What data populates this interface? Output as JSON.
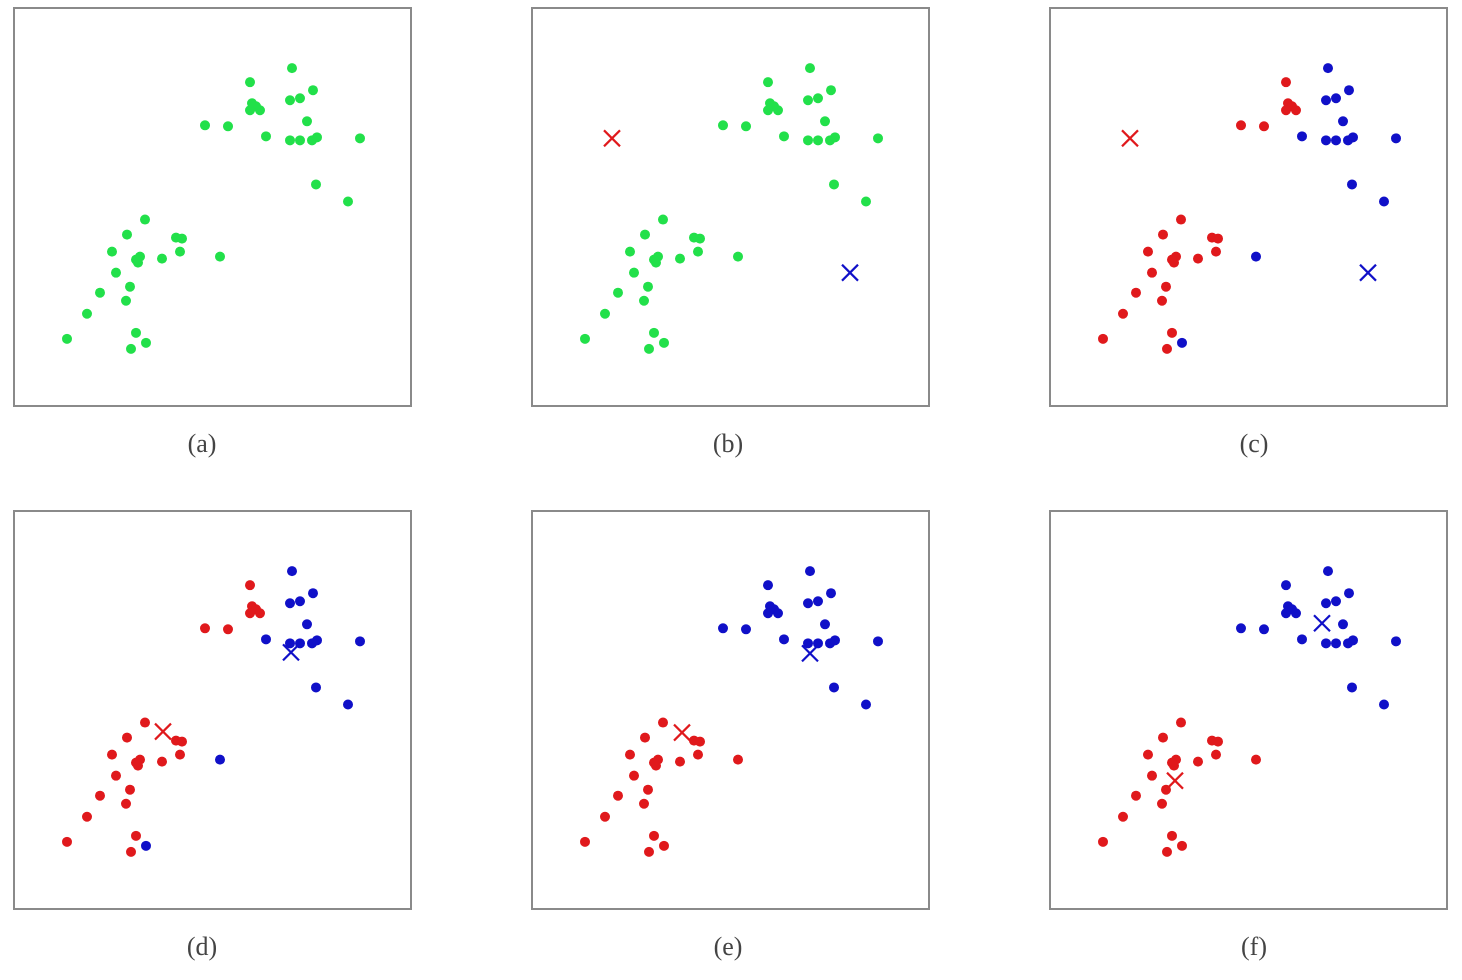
{
  "chart_data": [
    {
      "type": "scatter",
      "title": "(a)",
      "xlim": [
        0,
        397
      ],
      "ylim": [
        0,
        397
      ],
      "series": [
        {
          "color": "#22e04a",
          "marker": "dot",
          "x": [
            236,
            278,
            238,
            242,
            246,
            236,
            276,
            286,
            299,
            191,
            214,
            252,
            293,
            276,
            286,
            298,
            303,
            346,
            302,
            334,
            131,
            113,
            98,
            126,
            124,
            122,
            148,
            162,
            168,
            166,
            206,
            102,
            116,
            86,
            112,
            73,
            53,
            122,
            117,
            132
          ],
          "values": [
            323,
            337,
            302,
            299,
            295,
            295,
            305,
            307,
            315,
            280,
            279,
            269,
            284,
            265,
            265,
            265,
            268,
            267,
            221,
            204,
            186,
            171,
            154,
            149,
            143,
            146,
            147,
            168,
            167,
            154,
            149,
            133,
            119,
            113,
            105,
            92,
            67,
            73,
            57,
            63
          ]
        }
      ]
    },
    {
      "type": "scatter",
      "title": "(b)",
      "xlim": [
        0,
        397
      ],
      "ylim": [
        0,
        397
      ],
      "series": [
        {
          "color": "#22e04a",
          "marker": "dot",
          "x": [
            236,
            278,
            238,
            242,
            246,
            236,
            276,
            286,
            299,
            191,
            214,
            252,
            293,
            276,
            286,
            298,
            303,
            346,
            302,
            334,
            131,
            113,
            98,
            126,
            124,
            122,
            148,
            162,
            168,
            166,
            206,
            102,
            116,
            86,
            112,
            73,
            53,
            122,
            117,
            132
          ],
          "values": [
            323,
            337,
            302,
            299,
            295,
            295,
            305,
            307,
            315,
            280,
            279,
            269,
            284,
            265,
            265,
            265,
            268,
            267,
            221,
            204,
            186,
            171,
            154,
            149,
            143,
            146,
            147,
            168,
            167,
            154,
            149,
            133,
            119,
            113,
            105,
            92,
            67,
            73,
            57,
            63
          ]
        },
        {
          "color": "#e0191c",
          "marker": "cross",
          "x": [
            80
          ],
          "values": [
            267
          ]
        },
        {
          "color": "#1010c8",
          "marker": "cross",
          "x": [
            318
          ],
          "values": [
            133
          ]
        }
      ]
    },
    {
      "type": "scatter",
      "title": "(c)",
      "xlim": [
        0,
        397
      ],
      "ylim": [
        0,
        397
      ],
      "series": [
        {
          "color": "#e0191c",
          "marker": "dot",
          "x": [
            131,
            113,
            98,
            126,
            124,
            122,
            148,
            162,
            168,
            166,
            102,
            116,
            86,
            112,
            73,
            53,
            122,
            117,
            236,
            238,
            242,
            246,
            236,
            191,
            214
          ],
          "values": [
            186,
            171,
            154,
            149,
            143,
            146,
            147,
            168,
            167,
            154,
            133,
            119,
            113,
            105,
            92,
            67,
            73,
            57,
            323,
            302,
            299,
            295,
            295,
            280,
            279
          ]
        },
        {
          "color": "#1010c8",
          "marker": "dot",
          "x": [
            278,
            276,
            286,
            299,
            252,
            293,
            276,
            286,
            298,
            303,
            346,
            302,
            334,
            206,
            132
          ],
          "values": [
            337,
            305,
            307,
            315,
            269,
            284,
            265,
            265,
            265,
            268,
            267,
            221,
            204,
            149,
            63
          ]
        },
        {
          "color": "#e0191c",
          "marker": "cross",
          "x": [
            80
          ],
          "values": [
            267
          ]
        },
        {
          "color": "#1010c8",
          "marker": "cross",
          "x": [
            318
          ],
          "values": [
            133
          ]
        }
      ]
    },
    {
      "type": "scatter",
      "title": "(d)",
      "xlim": [
        0,
        397
      ],
      "ylim": [
        0,
        397
      ],
      "series": [
        {
          "color": "#e0191c",
          "marker": "dot",
          "x": [
            131,
            113,
            98,
            126,
            124,
            122,
            148,
            162,
            168,
            166,
            102,
            116,
            86,
            112,
            73,
            53,
            122,
            117,
            236,
            238,
            242,
            246,
            236,
            191,
            214
          ],
          "values": [
            186,
            171,
            154,
            149,
            143,
            146,
            147,
            168,
            167,
            154,
            133,
            119,
            113,
            105,
            92,
            67,
            73,
            57,
            323,
            302,
            299,
            295,
            295,
            280,
            279
          ]
        },
        {
          "color": "#1010c8",
          "marker": "dot",
          "x": [
            278,
            276,
            286,
            299,
            252,
            293,
            276,
            286,
            298,
            303,
            346,
            302,
            334,
            206,
            132
          ],
          "values": [
            337,
            305,
            307,
            315,
            269,
            284,
            265,
            265,
            265,
            268,
            267,
            221,
            204,
            149,
            63
          ]
        },
        {
          "color": "#e0191c",
          "marker": "cross",
          "x": [
            149
          ],
          "values": [
            177
          ]
        },
        {
          "color": "#1010c8",
          "marker": "cross",
          "x": [
            277
          ],
          "values": [
            256
          ]
        }
      ]
    },
    {
      "type": "scatter",
      "title": "(e)",
      "xlim": [
        0,
        397
      ],
      "ylim": [
        0,
        397
      ],
      "series": [
        {
          "color": "#e0191c",
          "marker": "dot",
          "x": [
            131,
            113,
            98,
            126,
            124,
            122,
            148,
            162,
            168,
            166,
            206,
            102,
            116,
            86,
            112,
            73,
            53,
            122,
            117,
            132
          ],
          "values": [
            186,
            171,
            154,
            149,
            143,
            146,
            147,
            168,
            167,
            154,
            149,
            133,
            119,
            113,
            105,
            92,
            67,
            73,
            57,
            63
          ]
        },
        {
          "color": "#1010c8",
          "marker": "dot",
          "x": [
            236,
            278,
            238,
            242,
            246,
            236,
            276,
            286,
            299,
            191,
            214,
            252,
            293,
            276,
            286,
            298,
            303,
            346,
            302,
            334
          ],
          "values": [
            323,
            337,
            302,
            299,
            295,
            295,
            305,
            307,
            315,
            280,
            279,
            269,
            284,
            265,
            265,
            265,
            268,
            267,
            221,
            204
          ]
        },
        {
          "color": "#e0191c",
          "marker": "cross",
          "x": [
            150
          ],
          "values": [
            176
          ]
        },
        {
          "color": "#1010c8",
          "marker": "cross",
          "x": [
            278
          ],
          "values": [
            255
          ]
        }
      ]
    },
    {
      "type": "scatter",
      "title": "(f)",
      "xlim": [
        0,
        397
      ],
      "ylim": [
        0,
        397
      ],
      "series": [
        {
          "color": "#e0191c",
          "marker": "dot",
          "x": [
            131,
            113,
            98,
            126,
            124,
            122,
            148,
            162,
            168,
            166,
            206,
            102,
            116,
            86,
            112,
            73,
            53,
            122,
            117,
            132
          ],
          "values": [
            186,
            171,
            154,
            149,
            143,
            146,
            147,
            168,
            167,
            154,
            149,
            133,
            119,
            113,
            105,
            92,
            67,
            73,
            57,
            63
          ]
        },
        {
          "color": "#1010c8",
          "marker": "dot",
          "x": [
            236,
            278,
            238,
            242,
            246,
            236,
            276,
            286,
            299,
            191,
            214,
            252,
            293,
            276,
            286,
            298,
            303,
            346,
            302,
            334
          ],
          "values": [
            323,
            337,
            302,
            299,
            295,
            295,
            305,
            307,
            315,
            280,
            279,
            269,
            284,
            265,
            265,
            265,
            268,
            267,
            221,
            204
          ]
        },
        {
          "color": "#e0191c",
          "marker": "cross",
          "x": [
            125
          ],
          "values": [
            128
          ]
        },
        {
          "color": "#1010c8",
          "marker": "cross",
          "x": [
            272
          ],
          "values": [
            285
          ]
        }
      ]
    }
  ]
}
